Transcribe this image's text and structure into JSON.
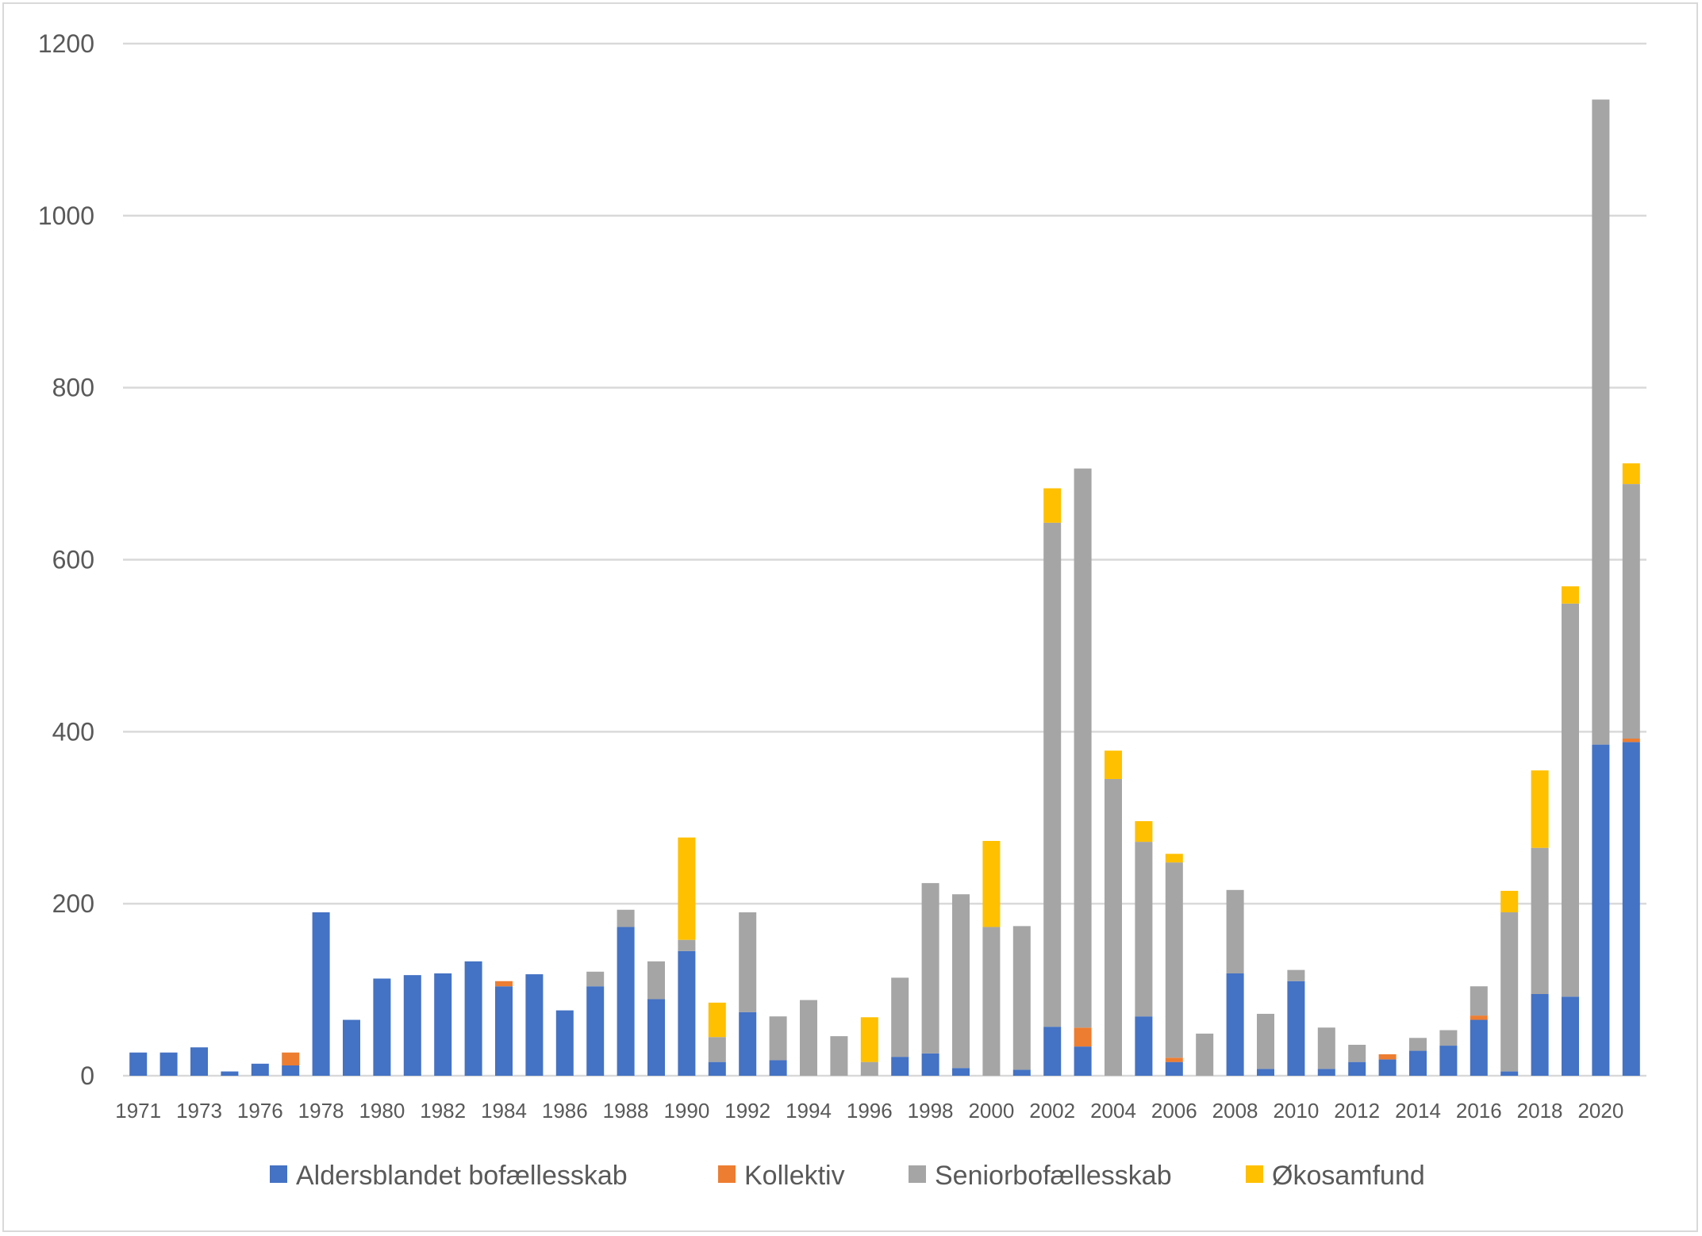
{
  "chart_data": {
    "type": "bar",
    "stacked": true,
    "title": "",
    "xlabel": "",
    "ylabel": "",
    "ylim": [
      0,
      1200
    ],
    "yticks": [
      0,
      200,
      400,
      600,
      800,
      1000,
      1200
    ],
    "grid": true,
    "legend_position": "bottom",
    "categories": [
      "1971",
      "1972",
      "1973",
      "1974",
      "1976",
      "1977",
      "1978",
      "1979",
      "1980",
      "1981",
      "1982",
      "1983",
      "1984",
      "1985",
      "1986",
      "1987",
      "1988",
      "1989",
      "1990",
      "1991",
      "1992",
      "1993",
      "1994",
      "1995",
      "1996",
      "1997",
      "1998",
      "1999",
      "2000",
      "2001",
      "2002",
      "2003",
      "2004",
      "2005",
      "2006",
      "2007",
      "2008",
      "2009",
      "2010",
      "2011",
      "2012",
      "2013",
      "2014",
      "2015",
      "2016",
      "2017",
      "2018",
      "2019",
      "2020",
      "2021"
    ],
    "tick_labels": [
      "1971",
      "",
      "1973",
      "",
      "1976",
      "",
      "1978",
      "",
      "1980",
      "",
      "1982",
      "",
      "1984",
      "",
      "1986",
      "",
      "1988",
      "",
      "1990",
      "",
      "1992",
      "",
      "1994",
      "",
      "1996",
      "",
      "1998",
      "",
      "2000",
      "",
      "2002",
      "",
      "2004",
      "",
      "2006",
      "",
      "2008",
      "",
      "2010",
      "",
      "2012",
      "",
      "2014",
      "",
      "2016",
      "",
      "2018",
      "",
      "2020",
      ""
    ],
    "series": [
      {
        "name": "Aldersblandet bofællesskab",
        "color": "#4472c4",
        "values": [
          27,
          27,
          33,
          5,
          14,
          12,
          190,
          65,
          113,
          117,
          119,
          133,
          104,
          118,
          76,
          104,
          173,
          89,
          145,
          16,
          74,
          18,
          0,
          0,
          0,
          22,
          26,
          9,
          0,
          7,
          57,
          34,
          0,
          69,
          16,
          0,
          119,
          8,
          110,
          8,
          16,
          19,
          29,
          35,
          65,
          5,
          95,
          92,
          385,
          388
        ]
      },
      {
        "name": "Kollektiv",
        "color": "#ed7d31",
        "values": [
          0,
          0,
          0,
          0,
          0,
          15,
          0,
          0,
          0,
          0,
          0,
          0,
          6,
          0,
          0,
          0,
          0,
          0,
          0,
          0,
          0,
          0,
          0,
          0,
          0,
          0,
          0,
          0,
          0,
          0,
          0,
          22,
          0,
          0,
          5,
          0,
          0,
          0,
          0,
          0,
          0,
          6,
          0,
          0,
          5,
          0,
          0,
          0,
          0,
          4
        ]
      },
      {
        "name": "Seniorbofællesskab",
        "color": "#a5a5a5",
        "values": [
          0,
          0,
          0,
          0,
          0,
          0,
          0,
          0,
          0,
          0,
          0,
          0,
          0,
          0,
          0,
          17,
          20,
          44,
          13,
          29,
          116,
          51,
          88,
          46,
          16,
          92,
          198,
          202,
          173,
          167,
          586,
          650,
          345,
          203,
          227,
          49,
          97,
          64,
          13,
          48,
          20,
          0,
          15,
          18,
          34,
          185,
          170,
          457,
          750,
          296
        ]
      },
      {
        "name": "Økosamfund",
        "color": "#ffc000",
        "values": [
          0,
          0,
          0,
          0,
          0,
          0,
          0,
          0,
          0,
          0,
          0,
          0,
          0,
          0,
          0,
          0,
          0,
          0,
          119,
          40,
          0,
          0,
          0,
          0,
          52,
          0,
          0,
          0,
          100,
          0,
          40,
          0,
          33,
          24,
          10,
          0,
          0,
          0,
          0,
          0,
          0,
          0,
          0,
          0,
          0,
          25,
          90,
          20,
          0,
          24
        ]
      }
    ]
  }
}
